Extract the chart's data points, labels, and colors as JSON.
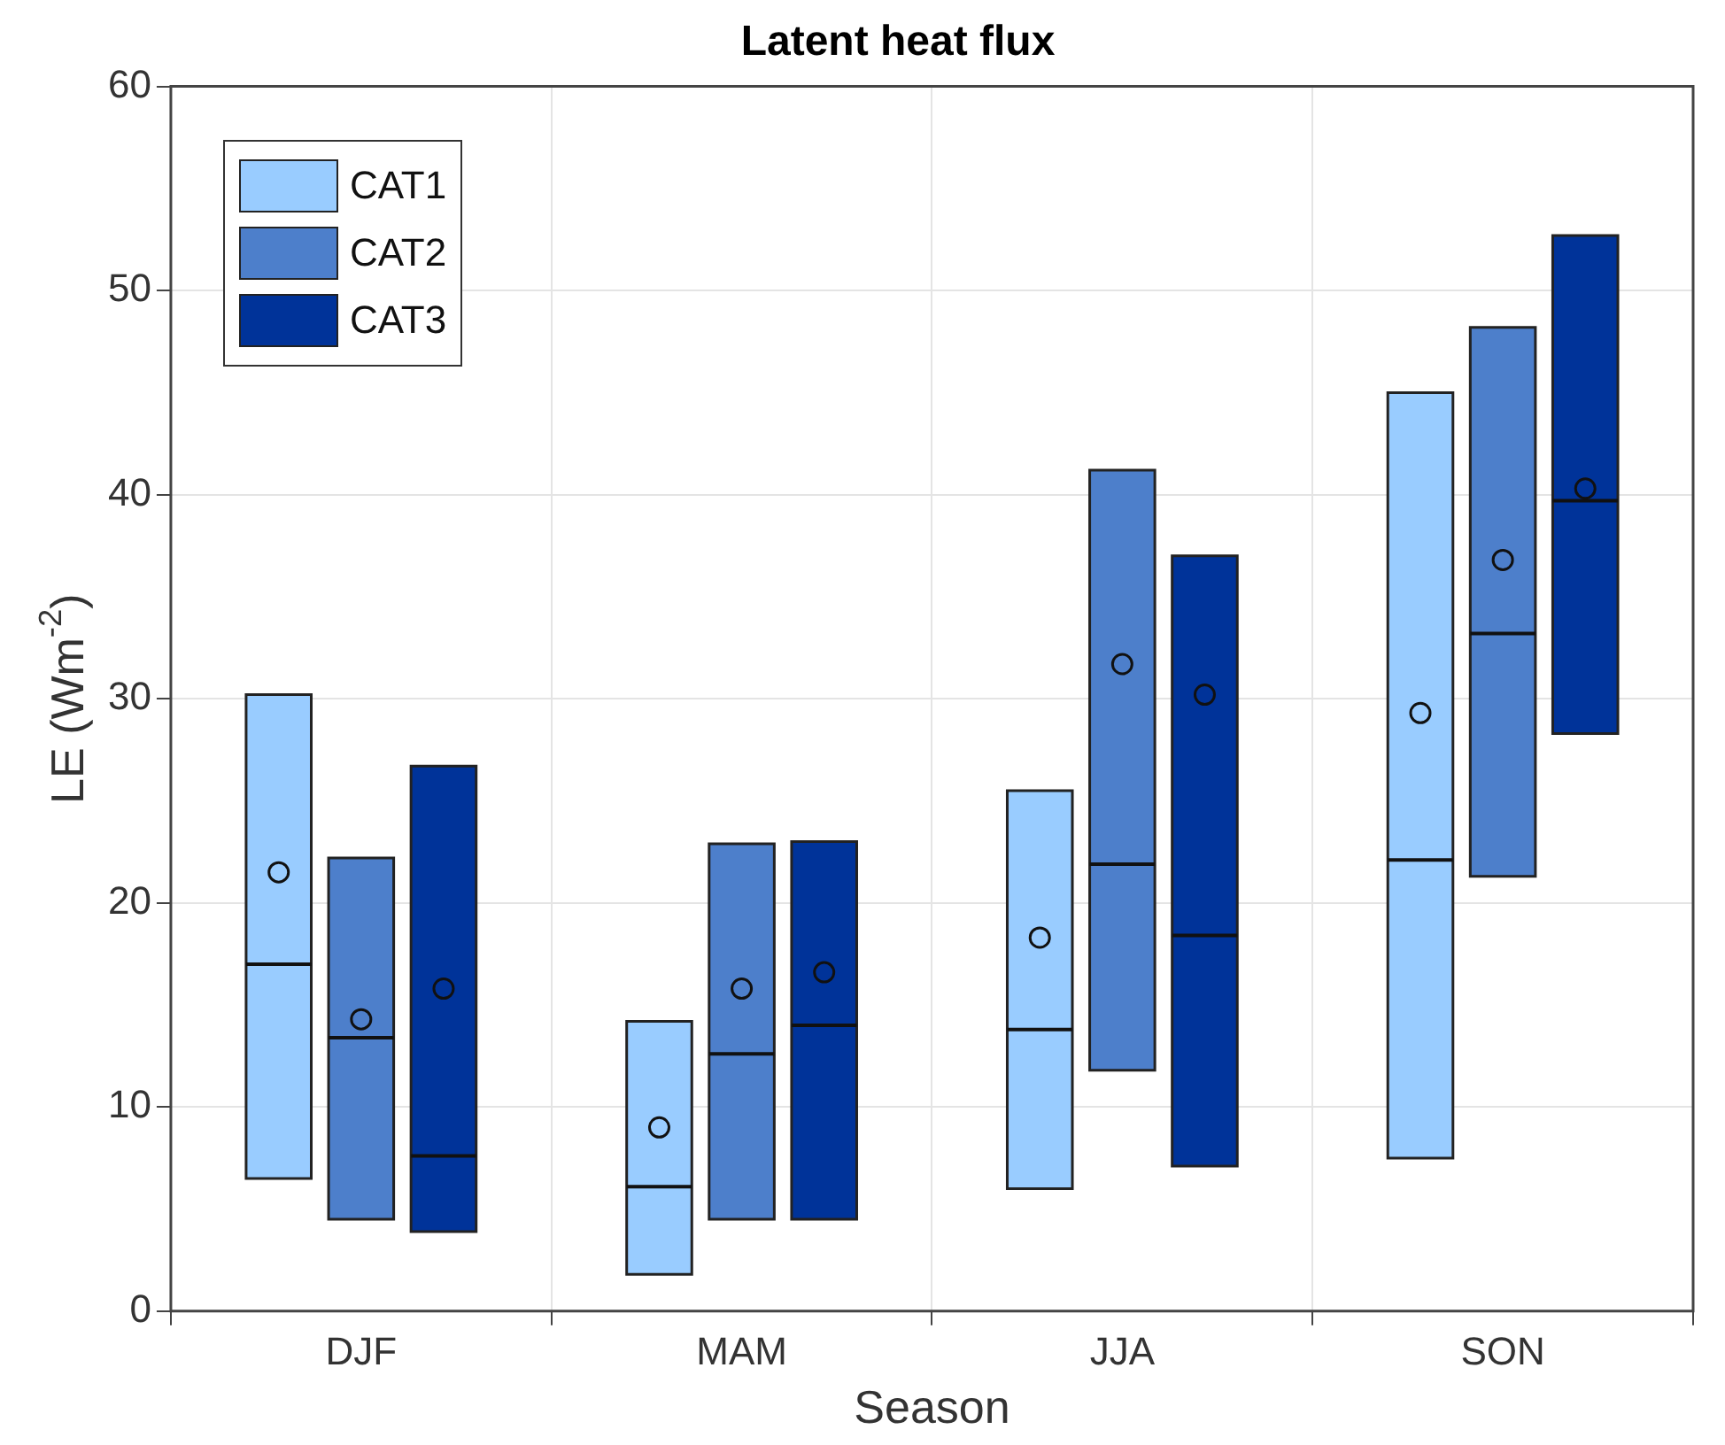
{
  "chart_data": {
    "type": "box",
    "title": "Latent heat flux",
    "xlabel": "Season",
    "ylabel": "LE (Wm$^{-2}$)",
    "categories": [
      "DJF",
      "MAM",
      "JJA",
      "SON"
    ],
    "ylim": [
      0,
      60
    ],
    "yticks": [
      0,
      10,
      20,
      30,
      40,
      50,
      60
    ],
    "grid": true,
    "legend": "top left",
    "series": [
      {
        "name": "CAT1",
        "color": "#99ccff",
        "boxes": [
          {
            "low": 6.5,
            "q1": 6.5,
            "median": 17.0,
            "q3": 30.2,
            "high": 30.2,
            "mean": 21.5
          },
          {
            "low": 1.8,
            "q1": 1.8,
            "median": 6.1,
            "q3": 14.2,
            "high": 14.2,
            "mean": 9.0
          },
          {
            "low": 6.0,
            "q1": 6.0,
            "median": 13.8,
            "q3": 25.5,
            "high": 25.5,
            "mean": 18.3
          },
          {
            "low": 7.5,
            "q1": 7.5,
            "median": 22.1,
            "q3": 45.0,
            "high": 45.0,
            "mean": 29.3
          }
        ]
      },
      {
        "name": "CAT2",
        "color": "#4d7fcb",
        "boxes": [
          {
            "low": 4.5,
            "q1": 4.5,
            "median": 13.4,
            "q3": 22.2,
            "high": 22.2,
            "mean": 14.3
          },
          {
            "low": 4.5,
            "q1": 4.5,
            "median": 12.6,
            "q3": 22.9,
            "high": 22.9,
            "mean": 15.8
          },
          {
            "low": 11.8,
            "q1": 11.8,
            "median": 21.9,
            "q3": 41.2,
            "high": 41.2,
            "mean": 31.7
          },
          {
            "low": 21.3,
            "q1": 21.3,
            "median": 33.2,
            "q3": 48.2,
            "high": 48.2,
            "mean": 36.8
          }
        ]
      },
      {
        "name": "CAT3",
        "color": "#003399",
        "boxes": [
          {
            "low": 3.9,
            "q1": 3.9,
            "median": 7.6,
            "q3": 26.7,
            "high": 26.7,
            "mean": 15.8
          },
          {
            "low": 4.5,
            "q1": 4.5,
            "median": 14.0,
            "q3": 23.0,
            "high": 23.0,
            "mean": 16.6
          },
          {
            "low": 7.1,
            "q1": 7.1,
            "median": 18.4,
            "q3": 37.0,
            "high": 37.0,
            "mean": 30.2
          },
          {
            "low": 28.3,
            "q1": 28.3,
            "median": 39.7,
            "q3": 52.7,
            "high": 52.7,
            "mean": 40.3
          }
        ]
      }
    ]
  }
}
